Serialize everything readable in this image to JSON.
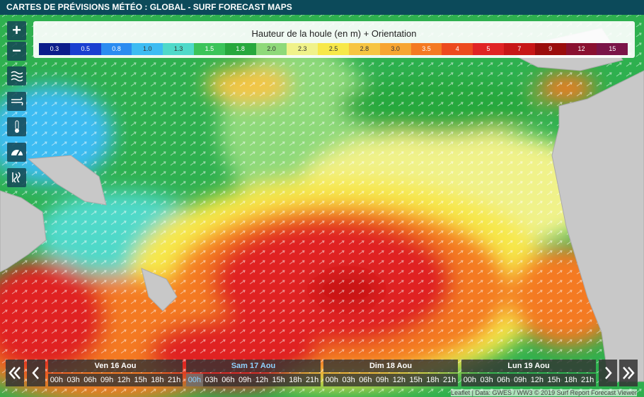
{
  "header": {
    "title": "CARTES DE PRÉVISIONS MÉTÉO : GLOBAL - SURF FORECAST MAPS"
  },
  "controls": {
    "zoom_in": "+",
    "zoom_out": "−"
  },
  "legend": {
    "title": "Hauteur de la houle (en m) + Orientation",
    "items": [
      {
        "label": "0.3",
        "color": "#0c1d8a"
      },
      {
        "label": "0.5",
        "color": "#1a3fd0"
      },
      {
        "label": "0.8",
        "color": "#2b8cf0"
      },
      {
        "label": "1.0",
        "color": "#3dbcf2"
      },
      {
        "label": "1.3",
        "color": "#4fd9c9"
      },
      {
        "label": "1.5",
        "color": "#3bc45a"
      },
      {
        "label": "1.8",
        "color": "#27a83d"
      },
      {
        "label": "2.0",
        "color": "#8ed97a"
      },
      {
        "label": "2.3",
        "color": "#f0f28a"
      },
      {
        "label": "2.5",
        "color": "#f7e84a"
      },
      {
        "label": "2.8",
        "color": "#f7c542"
      },
      {
        "label": "3.0",
        "color": "#f7a531"
      },
      {
        "label": "3.5",
        "color": "#f47a22"
      },
      {
        "label": "4",
        "color": "#ec4a1e"
      },
      {
        "label": "5",
        "color": "#e02424"
      },
      {
        "label": "7",
        "color": "#c71717"
      },
      {
        "label": "9",
        "color": "#9a0d0d"
      },
      {
        "label": "12",
        "color": "#8a1030"
      },
      {
        "label": "15",
        "color": "#7a1448"
      }
    ]
  },
  "timeline": {
    "days": [
      {
        "label": "Ven 16 Aou",
        "hours": [
          "00h",
          "03h",
          "06h",
          "09h",
          "12h",
          "15h",
          "18h",
          "21h"
        ]
      },
      {
        "label": "Sam 17 Aou",
        "hours": [
          "00h",
          "03h",
          "06h",
          "09h",
          "12h",
          "15h",
          "18h",
          "21h"
        ],
        "active": true
      },
      {
        "label": "Dim 18 Aou",
        "hours": [
          "00h",
          "03h",
          "06h",
          "09h",
          "12h",
          "15h",
          "18h",
          "21h"
        ]
      },
      {
        "label": "Lun 19 Aou",
        "hours": [
          "00h",
          "03h",
          "06h",
          "09h",
          "12h",
          "15h",
          "18h",
          "21h"
        ]
      }
    ]
  },
  "attribution": {
    "leaflet": "Leaflet",
    "data": "Data: GWES / WW3 © 2019 Surf Report Forecast Viewer"
  }
}
